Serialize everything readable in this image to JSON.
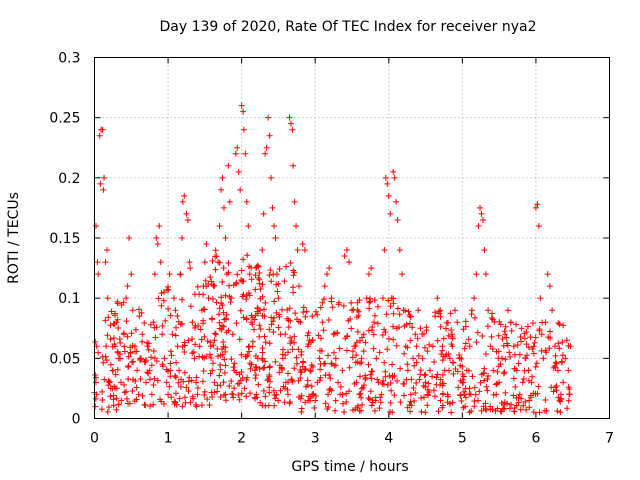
{
  "chart_data": {
    "type": "scatter",
    "title": "Day 139 of 2020, Rate Of TEC Index for receiver nya2",
    "xlabel": "GPS time / hours",
    "ylabel": "ROTI / TECUs",
    "xlim": [
      0,
      7
    ],
    "ylim": [
      0,
      0.3
    ],
    "x_ticks": [
      0,
      1,
      2,
      3,
      4,
      5,
      6,
      7
    ],
    "x_tick_labels": [
      "0",
      "1",
      "2",
      "3",
      "4",
      "5",
      "6",
      "7"
    ],
    "y_ticks": [
      0,
      0.05,
      0.1,
      0.15,
      0.2,
      0.25,
      0.3
    ],
    "y_tick_labels": [
      "0",
      "0.05",
      "0.1",
      "0.15",
      "0.2",
      "0.25",
      "0.3"
    ],
    "grid": true,
    "marker": "+",
    "series": [
      {
        "name": "ROTI",
        "color": "#ff0000",
        "points": [
          [
            0.02,
            0.16
          ],
          [
            0.04,
            0.13
          ],
          [
            0.05,
            0.12
          ],
          [
            0.03,
            0.06
          ],
          [
            0.02,
            0.03
          ],
          [
            0.03,
            0.02
          ],
          [
            0.01,
            0.01
          ],
          [
            0.07,
            0.235
          ],
          [
            0.09,
            0.24
          ],
          [
            0.11,
            0.24
          ],
          [
            0.08,
            0.195
          ],
          [
            0.12,
            0.19
          ],
          [
            0.13,
            0.2
          ],
          [
            0.15,
            0.13
          ],
          [
            0.17,
            0.14
          ],
          [
            0.18,
            0.1
          ],
          [
            0.2,
            0.03
          ],
          [
            0.22,
            0.025
          ],
          [
            0.25,
            0.04
          ],
          [
            0.28,
            0.06
          ],
          [
            0.3,
            0.08
          ],
          [
            0.33,
            0.05
          ],
          [
            0.36,
            0.03
          ],
          [
            0.4,
            0.07
          ],
          [
            0.43,
            0.1
          ],
          [
            0.45,
            0.11
          ],
          [
            0.47,
            0.15
          ],
          [
            0.5,
            0.12
          ],
          [
            0.52,
            0.09
          ],
          [
            0.55,
            0.06
          ],
          [
            0.58,
            0.04
          ],
          [
            0.6,
            0.02
          ],
          [
            0.62,
            0.05
          ],
          [
            0.65,
            0.07
          ],
          [
            0.7,
            0.03
          ],
          [
            0.72,
            0.06
          ],
          [
            0.75,
            0.04
          ],
          [
            0.78,
            0.02
          ],
          [
            0.8,
            0.08
          ],
          [
            0.82,
            0.12
          ],
          [
            0.84,
            0.15
          ],
          [
            0.86,
            0.145
          ],
          [
            0.88,
            0.16
          ],
          [
            0.9,
            0.13
          ],
          [
            0.92,
            0.07
          ],
          [
            0.95,
            0.05
          ],
          [
            0.98,
            0.03
          ],
          [
            1.0,
            0.02
          ],
          [
            1.03,
            0.04
          ],
          [
            1.06,
            0.07
          ],
          [
            1.08,
            0.1
          ],
          [
            1.1,
            0.09
          ],
          [
            1.13,
            0.06
          ],
          [
            1.15,
            0.04
          ],
          [
            1.17,
            0.12
          ],
          [
            1.19,
            0.15
          ],
          [
            1.2,
            0.18
          ],
          [
            1.22,
            0.185
          ],
          [
            1.25,
            0.17
          ],
          [
            1.27,
            0.165
          ],
          [
            1.29,
            0.13
          ],
          [
            1.3,
            0.125
          ],
          [
            1.33,
            0.08
          ],
          [
            1.36,
            0.05
          ],
          [
            1.38,
            0.03
          ],
          [
            1.4,
            0.02
          ],
          [
            1.43,
            0.06
          ],
          [
            1.46,
            0.09
          ],
          [
            1.48,
            0.11
          ],
          [
            1.5,
            0.13
          ],
          [
            1.52,
            0.145
          ],
          [
            1.55,
            0.1
          ],
          [
            1.58,
            0.06
          ],
          [
            1.6,
            0.04
          ],
          [
            1.63,
            0.03
          ],
          [
            1.65,
            0.07
          ],
          [
            1.68,
            0.13
          ],
          [
            1.7,
            0.16
          ],
          [
            1.72,
            0.19
          ],
          [
            1.74,
            0.2
          ],
          [
            1.76,
            0.175
          ],
          [
            1.78,
            0.15
          ],
          [
            1.8,
            0.12
          ],
          [
            1.82,
            0.21
          ],
          [
            1.84,
            0.18
          ],
          [
            1.86,
            0.1
          ],
          [
            1.88,
            0.07
          ],
          [
            1.9,
            0.04
          ],
          [
            1.92,
            0.22
          ],
          [
            1.94,
            0.225
          ],
          [
            1.96,
            0.205
          ],
          [
            1.98,
            0.19
          ],
          [
            2.0,
            0.26
          ],
          [
            2.02,
            0.255
          ],
          [
            2.03,
            0.24
          ],
          [
            2.05,
            0.22
          ],
          [
            2.07,
            0.18
          ],
          [
            2.09,
            0.16
          ],
          [
            2.11,
            0.12
          ],
          [
            2.13,
            0.08
          ],
          [
            2.15,
            0.06
          ],
          [
            2.18,
            0.04
          ],
          [
            2.2,
            0.02
          ],
          [
            2.22,
            0.05
          ],
          [
            2.25,
            0.09
          ],
          [
            2.28,
            0.14
          ],
          [
            2.3,
            0.17
          ],
          [
            2.32,
            0.22
          ],
          [
            2.34,
            0.225
          ],
          [
            2.36,
            0.25
          ],
          [
            2.38,
            0.235
          ],
          [
            2.4,
            0.2
          ],
          [
            2.42,
            0.175
          ],
          [
            2.44,
            0.16
          ],
          [
            2.46,
            0.15
          ],
          [
            2.48,
            0.12
          ],
          [
            2.5,
            0.1
          ],
          [
            2.53,
            0.07
          ],
          [
            2.56,
            0.05
          ],
          [
            2.6,
            0.03
          ],
          [
            2.63,
            0.02
          ],
          [
            2.65,
            0.25
          ],
          [
            2.67,
            0.245
          ],
          [
            2.69,
            0.24
          ],
          [
            2.7,
            0.21
          ],
          [
            2.72,
            0.18
          ],
          [
            2.74,
            0.16
          ],
          [
            2.76,
            0.14
          ],
          [
            2.78,
            0.11
          ],
          [
            2.8,
            0.08
          ],
          [
            2.83,
            0.145
          ],
          [
            2.86,
            0.14
          ],
          [
            2.9,
            0.06
          ],
          [
            2.93,
            0.04
          ],
          [
            2.96,
            0.02
          ],
          [
            3.0,
            0.015
          ],
          [
            3.03,
            0.03
          ],
          [
            3.06,
            0.05
          ],
          [
            3.1,
            0.08
          ],
          [
            3.13,
            0.11
          ],
          [
            3.16,
            0.12
          ],
          [
            3.19,
            0.125
          ],
          [
            3.22,
            0.1
          ],
          [
            3.25,
            0.07
          ],
          [
            3.28,
            0.05
          ],
          [
            3.31,
            0.03
          ],
          [
            3.34,
            0.02
          ],
          [
            3.37,
            0.04
          ],
          [
            3.4,
            0.135
          ],
          [
            3.43,
            0.14
          ],
          [
            3.46,
            0.13
          ],
          [
            3.5,
            0.09
          ],
          [
            3.53,
            0.06
          ],
          [
            3.56,
            0.03
          ],
          [
            3.6,
            0.02
          ],
          [
            3.63,
            0.05
          ],
          [
            3.66,
            0.07
          ],
          [
            3.7,
            0.1
          ],
          [
            3.73,
            0.12
          ],
          [
            3.76,
            0.125
          ],
          [
            3.8,
            0.08
          ],
          [
            3.83,
            0.05
          ],
          [
            3.86,
            0.03
          ],
          [
            3.9,
            0.02
          ],
          [
            3.92,
            0.1
          ],
          [
            3.94,
            0.14
          ],
          [
            3.96,
            0.2
          ],
          [
            3.98,
            0.195
          ],
          [
            4.0,
            0.185
          ],
          [
            4.02,
            0.17
          ],
          [
            4.04,
            0.1
          ],
          [
            4.06,
            0.205
          ],
          [
            4.08,
            0.2
          ],
          [
            4.1,
            0.18
          ],
          [
            4.12,
            0.165
          ],
          [
            4.15,
            0.14
          ],
          [
            4.18,
            0.12
          ],
          [
            4.2,
            0.09
          ],
          [
            4.23,
            0.06
          ],
          [
            4.26,
            0.04
          ],
          [
            4.3,
            0.02
          ],
          [
            4.33,
            0.05
          ],
          [
            4.36,
            0.07
          ],
          [
            4.4,
            0.09
          ],
          [
            4.43,
            0.075
          ],
          [
            4.46,
            0.05
          ],
          [
            4.5,
            0.03
          ],
          [
            4.53,
            0.02
          ],
          [
            4.56,
            0.04
          ],
          [
            4.6,
            0.06
          ],
          [
            4.63,
            0.085
          ],
          [
            4.66,
            0.1
          ],
          [
            4.7,
            0.09
          ],
          [
            4.73,
            0.06
          ],
          [
            4.76,
            0.04
          ],
          [
            4.8,
            0.02
          ],
          [
            4.83,
            0.05
          ],
          [
            4.86,
            0.07
          ],
          [
            4.9,
            0.09
          ],
          [
            4.93,
            0.08
          ],
          [
            4.96,
            0.05
          ],
          [
            5.0,
            0.03
          ],
          [
            5.03,
            0.02
          ],
          [
            5.06,
            0.04
          ],
          [
            5.1,
            0.06
          ],
          [
            5.13,
            0.09
          ],
          [
            5.16,
            0.1
          ],
          [
            5.19,
            0.12
          ],
          [
            5.22,
            0.16
          ],
          [
            5.24,
            0.175
          ],
          [
            5.26,
            0.17
          ],
          [
            5.28,
            0.165
          ],
          [
            5.3,
            0.14
          ],
          [
            5.32,
            0.12
          ],
          [
            5.35,
            0.09
          ],
          [
            5.38,
            0.06
          ],
          [
            5.42,
            0.04
          ],
          [
            5.46,
            0.02
          ],
          [
            5.5,
            0.03
          ],
          [
            5.54,
            0.05
          ],
          [
            5.58,
            0.07
          ],
          [
            5.62,
            0.09
          ],
          [
            5.66,
            0.08
          ],
          [
            5.7,
            0.06
          ],
          [
            5.74,
            0.04
          ],
          [
            5.78,
            0.02
          ],
          [
            5.82,
            0.03
          ],
          [
            5.86,
            0.05
          ],
          [
            5.9,
            0.04
          ],
          [
            5.94,
            0.03
          ],
          [
            5.97,
            0.06
          ],
          [
            6.0,
            0.175
          ],
          [
            6.02,
            0.178
          ],
          [
            6.04,
            0.16
          ],
          [
            6.06,
            0.1
          ],
          [
            6.08,
            0.07
          ],
          [
            6.1,
            0.05
          ],
          [
            6.13,
            0.08
          ],
          [
            6.16,
            0.12
          ],
          [
            6.19,
            0.11
          ],
          [
            6.22,
            0.09
          ],
          [
            6.26,
            0.06
          ],
          [
            6.3,
            0.04
          ],
          [
            6.34,
            0.02
          ],
          [
            6.37,
            0.03
          ],
          [
            6.4,
            0.05
          ],
          [
            6.42,
            0.065
          ],
          [
            6.44,
            0.04
          ],
          [
            6.46,
            0.02
          ],
          [
            6.47,
            0.06
          ]
        ],
        "bands": [
          [
            0.0,
            0.35,
            0.005,
            0.09,
            40
          ],
          [
            0.2,
            0.9,
            0.01,
            0.1,
            90
          ],
          [
            0.9,
            1.6,
            0.01,
            0.12,
            110
          ],
          [
            1.6,
            2.2,
            0.015,
            0.14,
            140
          ],
          [
            2.2,
            2.8,
            0.01,
            0.13,
            130
          ],
          [
            2.8,
            3.6,
            0.005,
            0.1,
            120
          ],
          [
            3.6,
            4.3,
            0.005,
            0.1,
            110
          ],
          [
            4.3,
            5.0,
            0.005,
            0.09,
            100
          ],
          [
            5.0,
            5.7,
            0.005,
            0.09,
            100
          ],
          [
            5.7,
            6.47,
            0.005,
            0.08,
            100
          ]
        ]
      }
    ]
  }
}
